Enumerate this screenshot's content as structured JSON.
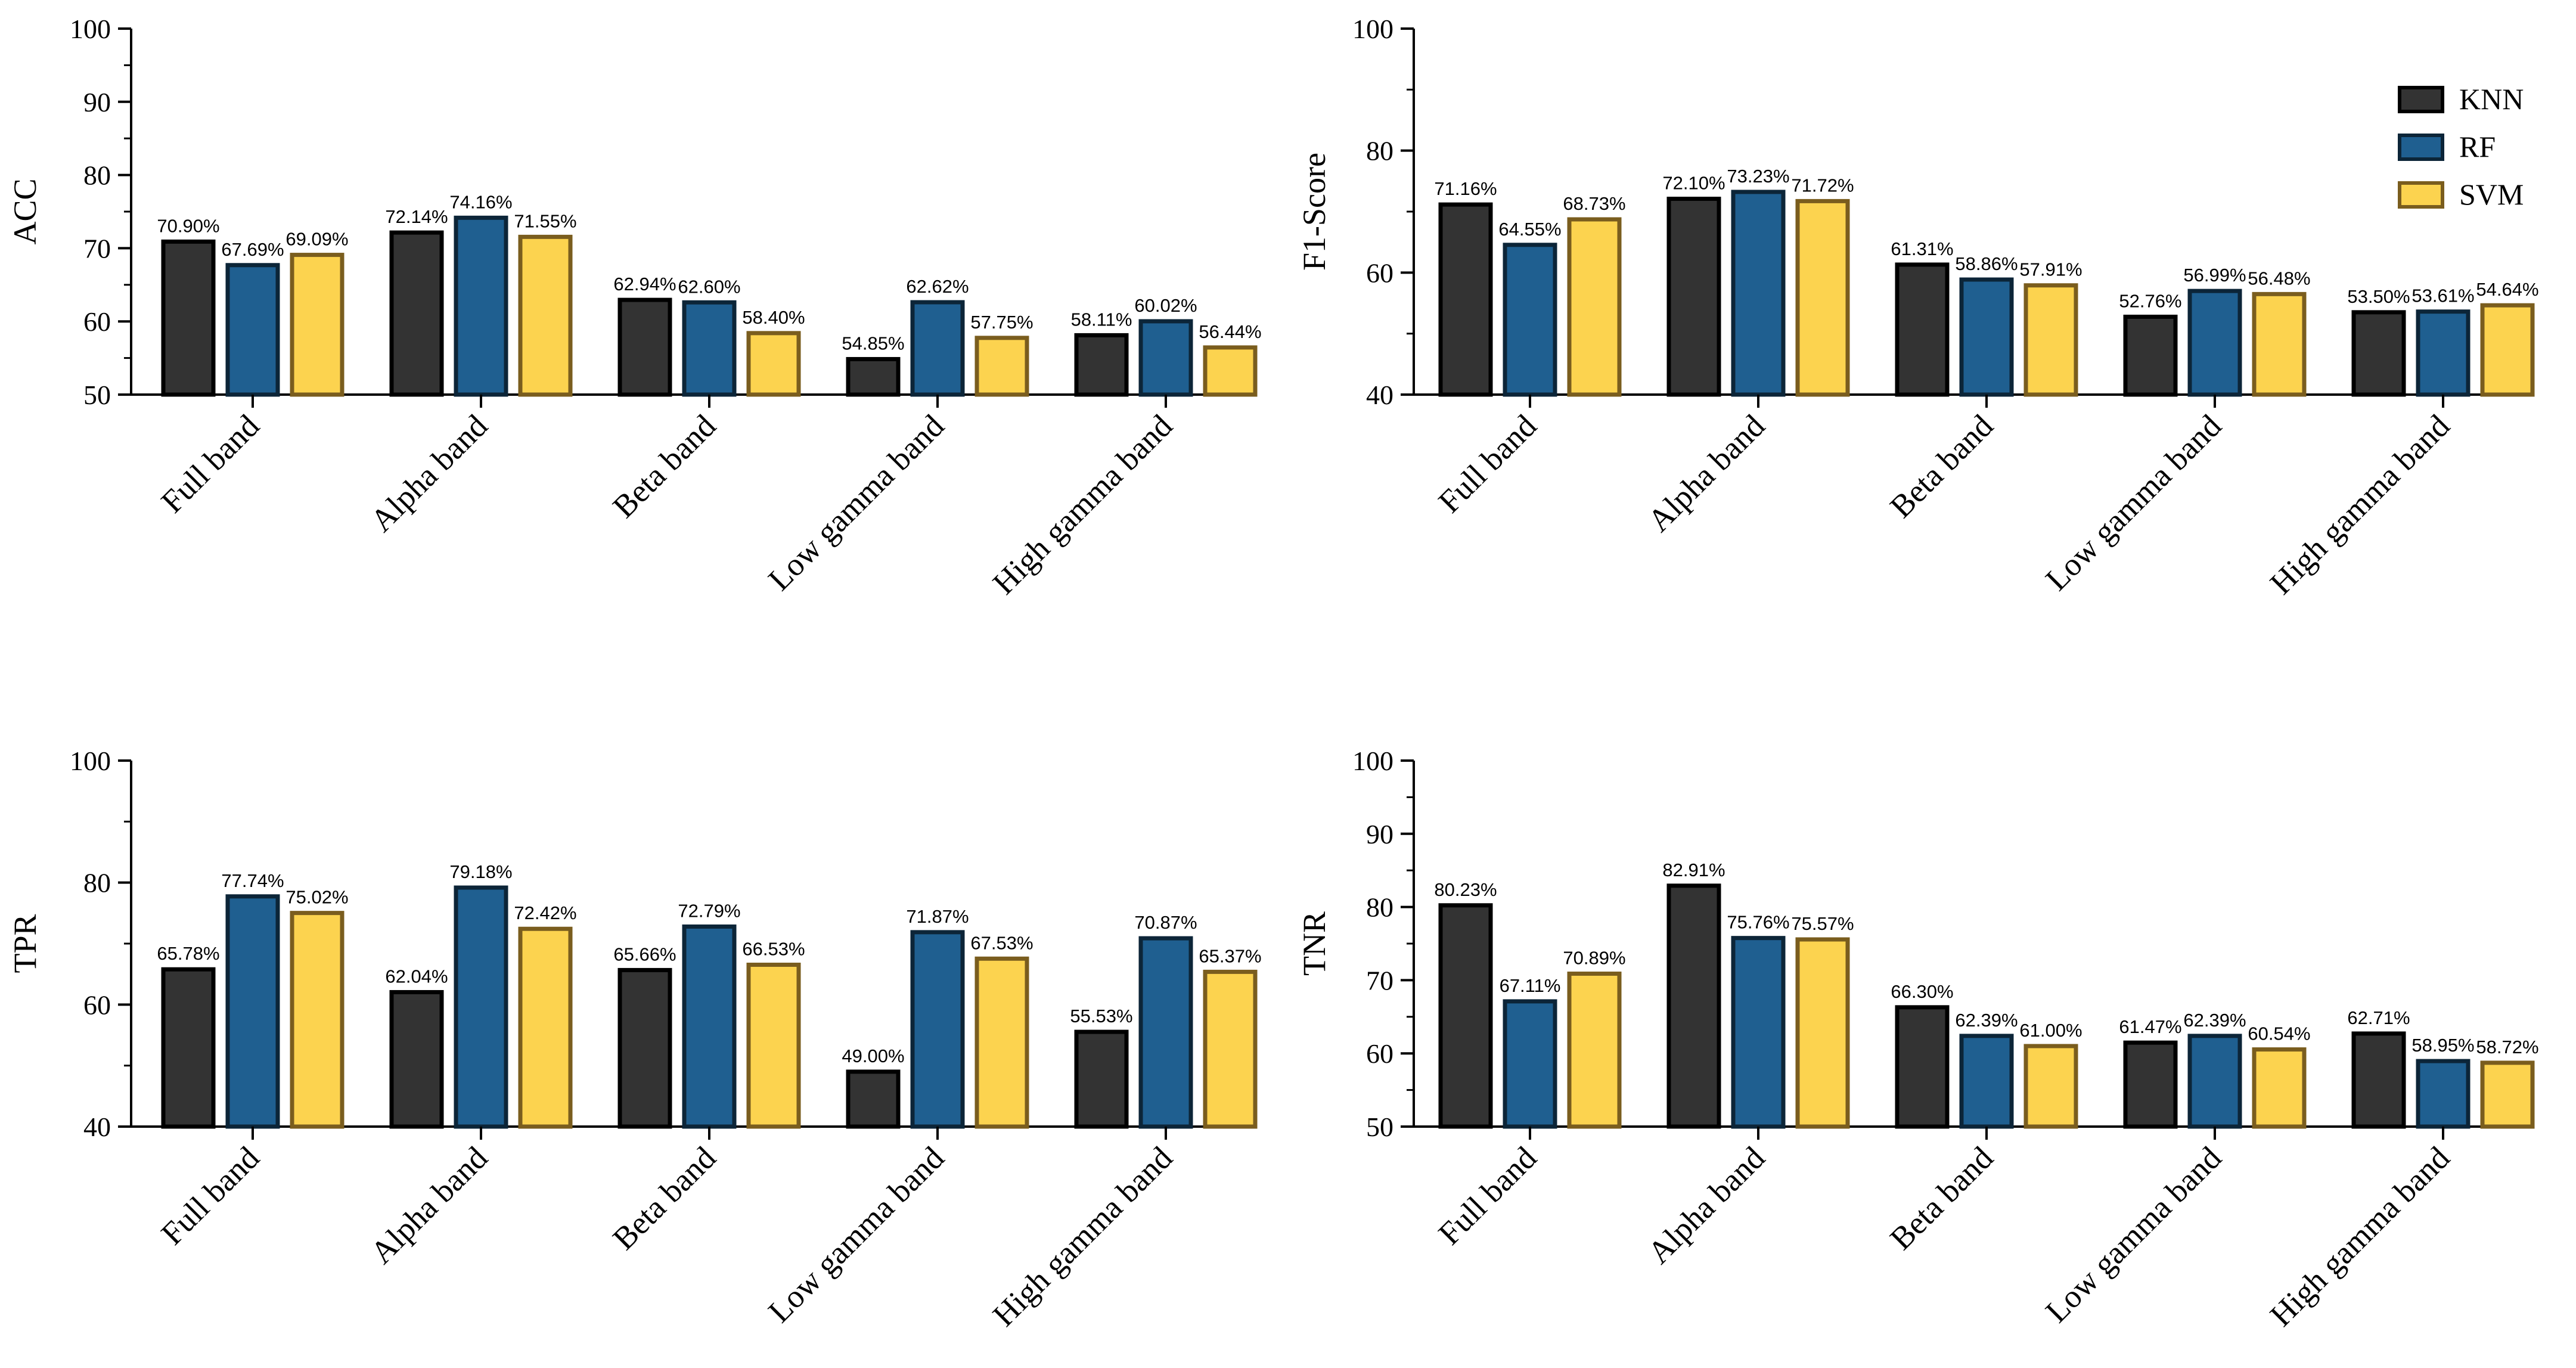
{
  "chart_data": [
    {
      "type": "bar",
      "ylabel": "ACC",
      "ylim": [
        50,
        100
      ],
      "yticks": [
        "100",
        "90",
        "80",
        "70",
        "60",
        "50"
      ],
      "categories": [
        "Full band",
        "Alpha band",
        "Beta band",
        "Low gamma band",
        "High gamma band"
      ],
      "series": [
        {
          "name": "KNN",
          "values": [
            70.9,
            72.14,
            62.94,
            54.85,
            58.11
          ],
          "labels": [
            "70.90%",
            "72.14%",
            "62.94%",
            "54.85%",
            "58.11%"
          ]
        },
        {
          "name": "RF",
          "values": [
            67.69,
            74.16,
            62.6,
            62.62,
            60.02
          ],
          "labels": [
            "67.69%",
            "74.16%",
            "62.60%",
            "62.62%",
            "60.02%"
          ]
        },
        {
          "name": "SVM",
          "values": [
            69.09,
            71.55,
            58.4,
            57.75,
            56.44
          ],
          "labels": [
            "69.09%",
            "71.55%",
            "58.40%",
            "57.75%",
            "56.44%"
          ]
        }
      ]
    },
    {
      "type": "bar",
      "ylabel": "F1-Score",
      "ylim": [
        40,
        100
      ],
      "yticks": [
        "100",
        "80",
        "60",
        "40"
      ],
      "categories": [
        "Full band",
        "Alpha band",
        "Beta band",
        "Low gamma band",
        "High gamma band"
      ],
      "series": [
        {
          "name": "KNN",
          "values": [
            71.16,
            72.1,
            61.31,
            52.76,
            53.5
          ],
          "labels": [
            "71.16%",
            "72.10%",
            "61.31%",
            "52.76%",
            "53.50%"
          ]
        },
        {
          "name": "RF",
          "values": [
            64.55,
            73.23,
            58.86,
            56.99,
            53.61
          ],
          "labels": [
            "64.55%",
            "73.23%",
            "58.86%",
            "56.99%",
            "53.61%"
          ]
        },
        {
          "name": "SVM",
          "values": [
            68.73,
            71.72,
            57.91,
            56.48,
            54.64
          ],
          "labels": [
            "68.73%",
            "71.72%",
            "57.91%",
            "56.48%",
            "54.64%"
          ]
        }
      ],
      "legend": [
        "KNN",
        "RF",
        "SVM"
      ]
    },
    {
      "type": "bar",
      "ylabel": "TPR",
      "ylim": [
        40,
        100
      ],
      "yticks": [
        "100",
        "80",
        "60",
        "40"
      ],
      "categories": [
        "Full band",
        "Alpha band",
        "Beta band",
        "Low gamma band",
        "High gamma band"
      ],
      "series": [
        {
          "name": "KNN",
          "values": [
            65.78,
            62.04,
            65.66,
            49.0,
            55.53
          ],
          "labels": [
            "65.78%",
            "62.04%",
            "65.66%",
            "49.00%",
            "55.53%"
          ]
        },
        {
          "name": "RF",
          "values": [
            77.74,
            79.18,
            72.79,
            71.87,
            70.87
          ],
          "labels": [
            "77.74%",
            "79.18%",
            "72.79%",
            "71.87%",
            "70.87%"
          ]
        },
        {
          "name": "SVM",
          "values": [
            75.02,
            72.42,
            66.53,
            67.53,
            65.37
          ],
          "labels": [
            "75.02%",
            "72.42%",
            "66.53%",
            "67.53%",
            "65.37%"
          ]
        }
      ]
    },
    {
      "type": "bar",
      "ylabel": "TNR",
      "ylim": [
        50,
        100
      ],
      "yticks": [
        "100",
        "90",
        "80",
        "70",
        "60",
        "50"
      ],
      "categories": [
        "Full band",
        "Alpha band",
        "Beta band",
        "Low gamma band",
        "High gamma band"
      ],
      "series": [
        {
          "name": "KNN",
          "values": [
            80.23,
            82.91,
            66.3,
            61.47,
            62.71
          ],
          "labels": [
            "80.23%",
            "82.91%",
            "66.30%",
            "61.47%",
            "62.71%"
          ]
        },
        {
          "name": "RF",
          "values": [
            67.11,
            75.76,
            62.39,
            62.39,
            58.95
          ],
          "labels": [
            "67.11%",
            "75.76%",
            "62.39%",
            "62.39%",
            "58.95%"
          ]
        },
        {
          "name": "SVM",
          "values": [
            70.89,
            75.57,
            61.0,
            60.54,
            58.72
          ],
          "labels": [
            "70.89%",
            "75.57%",
            "61.00%",
            "60.54%",
            "58.72%"
          ]
        }
      ]
    }
  ],
  "colors": {
    "KNN": {
      "fill": "#333333",
      "stroke": "#000000"
    },
    "RF": {
      "fill": "#1f5f90",
      "stroke": "#0c2538"
    },
    "SVM": {
      "fill": "#fcd34f",
      "stroke": "#7a5d1e"
    }
  }
}
